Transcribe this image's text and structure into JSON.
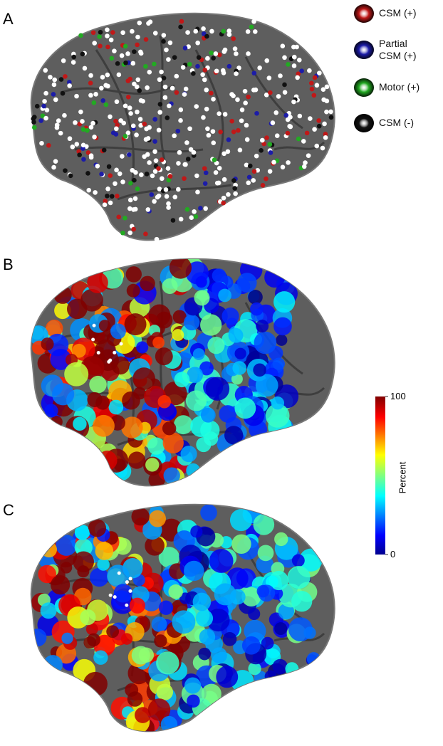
{
  "panels": [
    {
      "label": "A"
    },
    {
      "label": "B"
    },
    {
      "label": "C"
    }
  ],
  "legend": [
    {
      "label": "CSM (+)",
      "color": "#c01818"
    },
    {
      "label": "Partial CSM (+)",
      "color": "#1c1ca8"
    },
    {
      "label": "Motor (+)",
      "color": "#22aa22"
    },
    {
      "label": "CSM (-)",
      "color": "#111111"
    }
  ],
  "colorbar": {
    "lim": [
      0,
      100
    ],
    "ticks": [
      0,
      100
    ],
    "label": "Percent"
  }
}
